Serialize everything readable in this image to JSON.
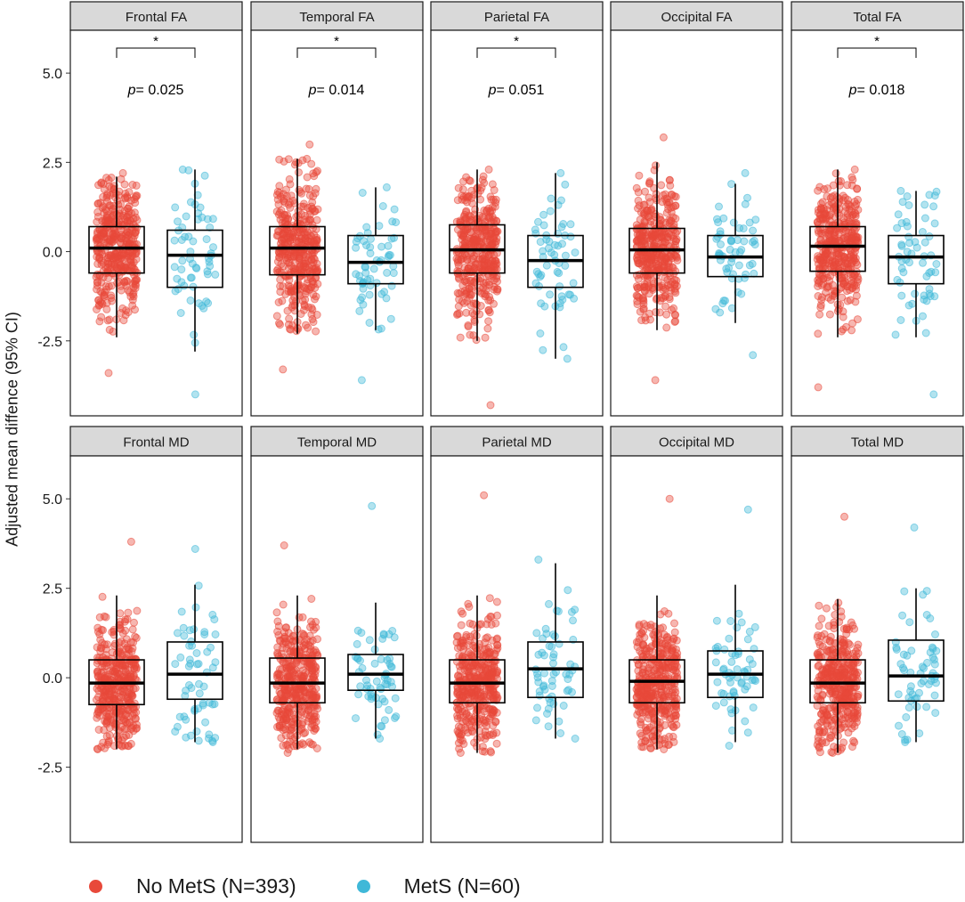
{
  "figure": {
    "y_axis_label": "Adjusted mean diffence (95% CI)"
  },
  "legend": {
    "items": [
      {
        "label": "No MetS (N=393)",
        "color": "#e8493a"
      },
      {
        "label": "MetS (N=60)",
        "color": "#3fb8d8"
      }
    ]
  },
  "chart_data": {
    "type": "boxplot-with-jitter",
    "ylim": [
      -4.6,
      6.2
    ],
    "yticks": [
      5.0,
      2.5,
      0.0,
      -2.5
    ],
    "ytick_labels": [
      "5.0",
      "2.5",
      "0.0",
      "-2.5"
    ],
    "groups": [
      {
        "name": "No MetS",
        "n": 393,
        "color": "#e8493a"
      },
      {
        "name": "MetS",
        "n": 60,
        "color": "#3fb8d8"
      }
    ],
    "rows": [
      {
        "metric": "FA",
        "panels": [
          {
            "title": "Frontal FA",
            "sig_star": "*",
            "p_label": "p",
            "p_value": "= 0.025",
            "nomets": {
              "q1": -0.6,
              "median": 0.1,
              "q3": 0.7,
              "lo": -2.4,
              "hi": 2.1,
              "min_pt": -3.4,
              "max_pt": 2.2
            },
            "mets": {
              "q1": -1.0,
              "median": -0.1,
              "q3": 0.6,
              "lo": -2.8,
              "hi": 2.3,
              "min_pt": -4.0,
              "max_pt": 2.3
            }
          },
          {
            "title": "Temporal FA",
            "sig_star": "*",
            "p_label": "p",
            "p_value": "= 0.014",
            "nomets": {
              "q1": -0.65,
              "median": 0.1,
              "q3": 0.7,
              "lo": -2.3,
              "hi": 2.6,
              "min_pt": -3.3,
              "max_pt": 3.0
            },
            "mets": {
              "q1": -0.9,
              "median": -0.3,
              "q3": 0.45,
              "lo": -2.2,
              "hi": 1.8,
              "min_pt": -3.6,
              "max_pt": 1.8
            }
          },
          {
            "title": "Parietal FA",
            "sig_star": "*",
            "p_label": "p",
            "p_value": "= 0.051",
            "nomets": {
              "q1": -0.6,
              "median": 0.05,
              "q3": 0.75,
              "lo": -2.5,
              "hi": 2.3,
              "min_pt": -4.3,
              "max_pt": 2.3
            },
            "mets": {
              "q1": -1.0,
              "median": -0.25,
              "q3": 0.45,
              "lo": -3.0,
              "hi": 2.2,
              "min_pt": -3.0,
              "max_pt": 2.2
            }
          },
          {
            "title": "Occipital FA",
            "sig_star": "",
            "p_label": "",
            "p_value": "",
            "nomets": {
              "q1": -0.6,
              "median": 0.05,
              "q3": 0.65,
              "lo": -2.2,
              "hi": 2.5,
              "min_pt": -3.6,
              "max_pt": 3.2
            },
            "mets": {
              "q1": -0.7,
              "median": -0.15,
              "q3": 0.45,
              "lo": -2.0,
              "hi": 1.9,
              "min_pt": -2.9,
              "max_pt": 2.2
            }
          },
          {
            "title": "Total FA",
            "sig_star": "*",
            "p_label": "p",
            "p_value": "= 0.018",
            "nomets": {
              "q1": -0.55,
              "median": 0.15,
              "q3": 0.7,
              "lo": -2.4,
              "hi": 2.3,
              "min_pt": -3.8,
              "max_pt": 2.3
            },
            "mets": {
              "q1": -0.9,
              "median": -0.15,
              "q3": 0.45,
              "lo": -2.4,
              "hi": 1.7,
              "min_pt": -4.0,
              "max_pt": 1.7
            }
          }
        ]
      },
      {
        "metric": "MD",
        "panels": [
          {
            "title": "Frontal MD",
            "sig_star": "",
            "p_label": "",
            "p_value": "",
            "nomets": {
              "q1": -0.75,
              "median": -0.15,
              "q3": 0.5,
              "lo": -2.0,
              "hi": 2.3,
              "min_pt": -2.0,
              "max_pt": 3.8
            },
            "mets": {
              "q1": -0.6,
              "median": 0.1,
              "q3": 1.0,
              "lo": -1.8,
              "hi": 2.6,
              "min_pt": -1.8,
              "max_pt": 3.6
            }
          },
          {
            "title": "Temporal MD",
            "sig_star": "",
            "p_label": "",
            "p_value": "",
            "nomets": {
              "q1": -0.7,
              "median": -0.15,
              "q3": 0.55,
              "lo": -2.0,
              "hi": 2.3,
              "min_pt": -2.1,
              "max_pt": 3.7
            },
            "mets": {
              "q1": -0.35,
              "median": 0.1,
              "q3": 0.65,
              "lo": -1.7,
              "hi": 2.1,
              "min_pt": -1.7,
              "max_pt": 4.8
            }
          },
          {
            "title": "Parietal MD",
            "sig_star": "",
            "p_label": "",
            "p_value": "",
            "nomets": {
              "q1": -0.7,
              "median": -0.15,
              "q3": 0.5,
              "lo": -2.1,
              "hi": 2.3,
              "min_pt": -2.1,
              "max_pt": 5.1
            },
            "mets": {
              "q1": -0.55,
              "median": 0.25,
              "q3": 1.0,
              "lo": -1.7,
              "hi": 3.2,
              "min_pt": -1.7,
              "max_pt": 3.3
            }
          },
          {
            "title": "Occipital MD",
            "sig_star": "",
            "p_label": "",
            "p_value": "",
            "nomets": {
              "q1": -0.7,
              "median": -0.1,
              "q3": 0.5,
              "lo": -2.0,
              "hi": 2.3,
              "min_pt": -2.0,
              "max_pt": 5.0
            },
            "mets": {
              "q1": -0.55,
              "median": 0.1,
              "q3": 0.75,
              "lo": -1.8,
              "hi": 2.6,
              "min_pt": -1.9,
              "max_pt": 4.7
            }
          },
          {
            "title": "Total MD",
            "sig_star": "",
            "p_label": "",
            "p_value": "",
            "nomets": {
              "q1": -0.7,
              "median": -0.15,
              "q3": 0.5,
              "lo": -2.1,
              "hi": 2.2,
              "min_pt": -2.1,
              "max_pt": 4.5
            },
            "mets": {
              "q1": -0.65,
              "median": 0.05,
              "q3": 1.05,
              "lo": -1.8,
              "hi": 2.5,
              "min_pt": -1.8,
              "max_pt": 4.2
            }
          }
        ]
      }
    ]
  }
}
